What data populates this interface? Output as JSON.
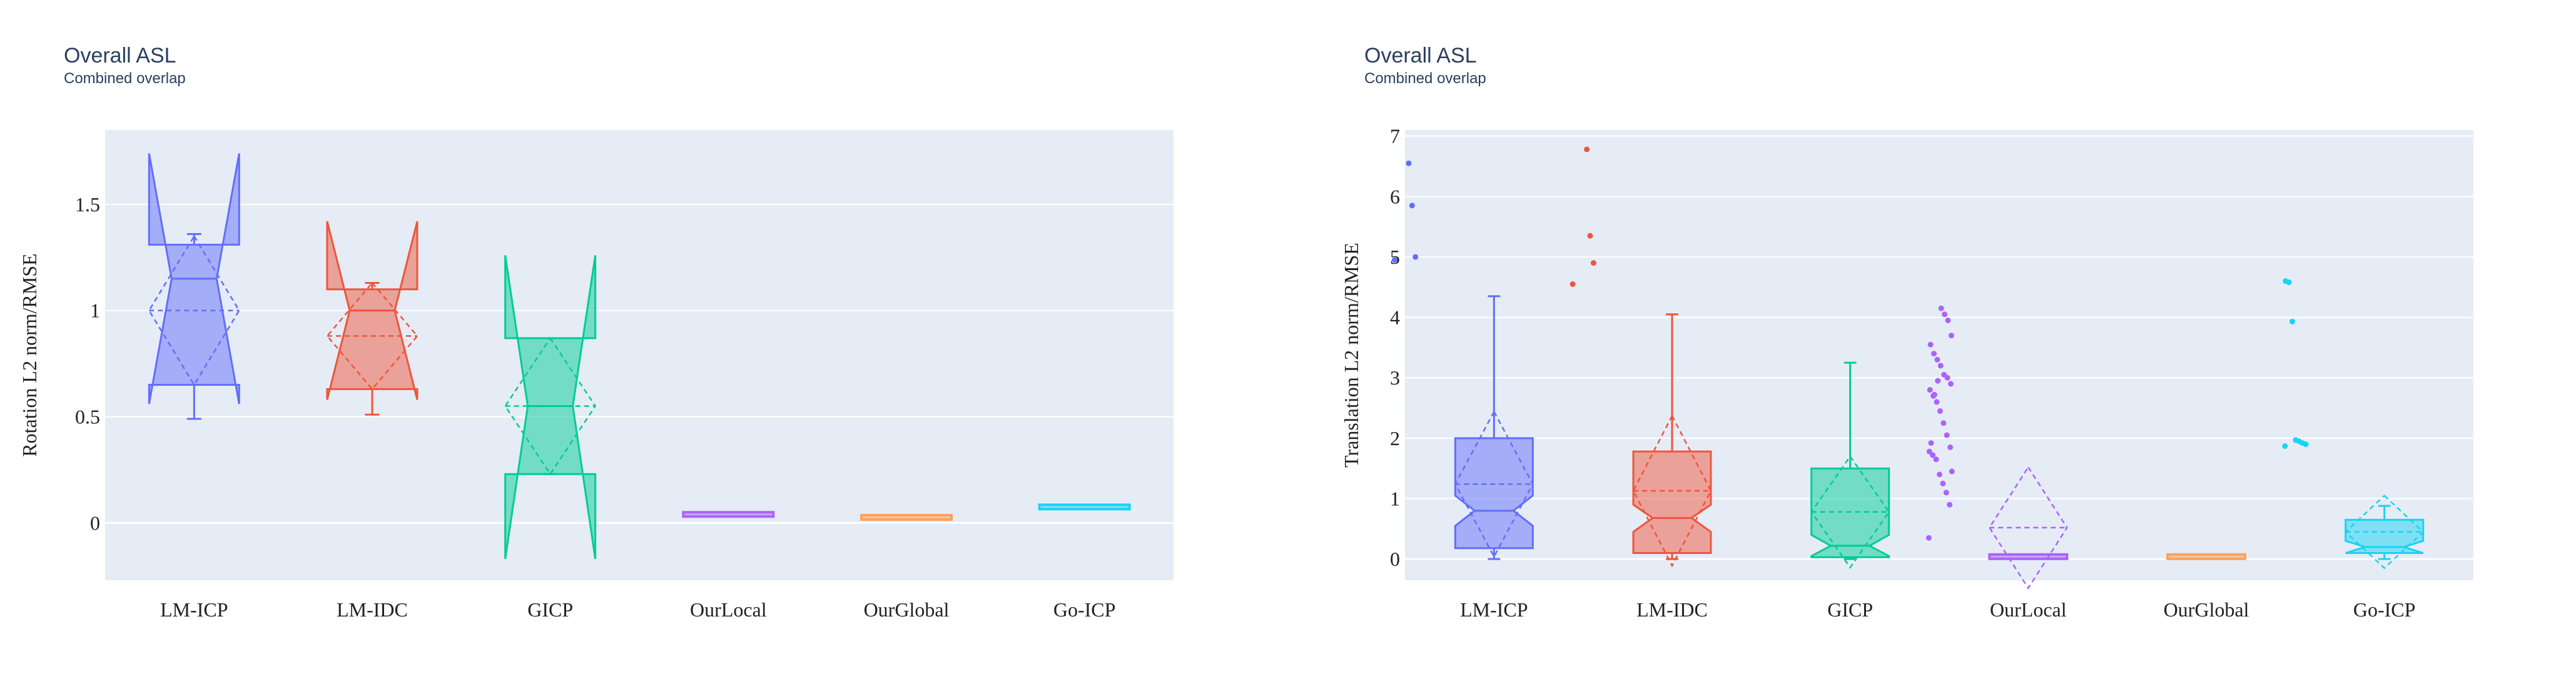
{
  "colors": {
    "LM-ICP": "#636efa",
    "LM-IDC": "#ef553b",
    "GICP": "#00cc96",
    "OurLocal": "#ab63fa",
    "OurGlobal": "#ffa15a",
    "Go-ICP": "#19d3f3",
    "plot_bg": "#e5ecf6",
    "grid": "#ffffff"
  },
  "chart_data": [
    {
      "type": "box",
      "title": "Overall ASL",
      "subtitle": "Combined overlap",
      "ylabel": "Rotation L2 norm/RMSE",
      "xlabel": "",
      "ylim": [
        -0.27,
        1.85
      ],
      "yticks": [
        0,
        0.5,
        1,
        1.5
      ],
      "ytick_labels": [
        "0",
        "0.5",
        "1",
        "1.5"
      ],
      "grid": true,
      "notched": true,
      "show_mean_sd": true,
      "categories": [
        "LM-ICP",
        "LM-IDC",
        "GICP",
        "OurLocal",
        "OurGlobal",
        "Go-ICP"
      ],
      "boxes": [
        {
          "name": "LM-ICP",
          "q1": 0.65,
          "median": 1.15,
          "q3": 1.31,
          "lower_fence": 0.49,
          "upper_fence": 1.36,
          "notch_low": 0.56,
          "notch_high": 1.74,
          "mean": 1.0,
          "sd": 0.35,
          "outliers": []
        },
        {
          "name": "LM-IDC",
          "q1": 0.63,
          "median": 1.0,
          "q3": 1.1,
          "lower_fence": 0.51,
          "upper_fence": 1.13,
          "notch_low": 0.58,
          "notch_high": 1.42,
          "mean": 0.88,
          "sd": 0.25,
          "outliers": []
        },
        {
          "name": "GICP",
          "q1": 0.23,
          "median": 0.55,
          "q3": 0.87,
          "lower_fence": 0.23,
          "upper_fence": 0.87,
          "notch_low": -0.17,
          "notch_high": 1.26,
          "mean": 0.55,
          "sd": 0.32,
          "outliers": []
        },
        {
          "name": "OurLocal",
          "q1": 0.033,
          "median": 0.04,
          "q3": 0.047,
          "lower_fence": 0.033,
          "upper_fence": 0.047,
          "mean": 0.04,
          "sd": 0.006,
          "outliers": []
        },
        {
          "name": "OurGlobal",
          "q1": 0.025,
          "median": 0.026,
          "q3": 0.027,
          "lower_fence": 0.025,
          "upper_fence": 0.027,
          "mean": 0.026,
          "sd": 0.001,
          "outliers": []
        },
        {
          "name": "Go-ICP",
          "q1": 0.074,
          "median": 0.075,
          "q3": 0.076,
          "lower_fence": 0.074,
          "upper_fence": 0.076,
          "mean": 0.075,
          "sd": 0.001,
          "outliers": []
        }
      ]
    },
    {
      "type": "box",
      "title": "Overall ASL",
      "subtitle": "Combined overlap",
      "ylabel": "Translation L2 norm/RMSE",
      "xlabel": "",
      "ylim": [
        -0.35,
        7.1
      ],
      "yticks": [
        0,
        1,
        2,
        3,
        4,
        5,
        6,
        7
      ],
      "ytick_labels": [
        "0",
        "1",
        "2",
        "3",
        "4",
        "5",
        "6",
        "7"
      ],
      "grid": true,
      "notched": true,
      "show_mean_sd": true,
      "categories": [
        "LM-ICP",
        "LM-IDC",
        "GICP",
        "OurLocal",
        "OurGlobal",
        "Go-ICP"
      ],
      "boxes": [
        {
          "name": "LM-ICP",
          "q1": 0.18,
          "median": 0.8,
          "q3": 2.0,
          "lower_fence": 0.0,
          "upper_fence": 4.35,
          "notch_low": 0.55,
          "notch_high": 1.05,
          "mean": 1.24,
          "sd": 1.2,
          "outliers": [
            4.95,
            5.0,
            5.85,
            6.55
          ]
        },
        {
          "name": "LM-IDC",
          "q1": 0.1,
          "median": 0.68,
          "q3": 1.78,
          "lower_fence": 0.0,
          "upper_fence": 4.05,
          "notch_low": 0.45,
          "notch_high": 0.9,
          "mean": 1.13,
          "sd": 1.24,
          "outliers": [
            4.55,
            4.9,
            5.35,
            6.78
          ]
        },
        {
          "name": "GICP",
          "q1": 0.03,
          "median": 0.22,
          "q3": 1.5,
          "lower_fence": 0.0,
          "upper_fence": 3.25,
          "notch_low": 0.05,
          "notch_high": 0.4,
          "mean": 0.78,
          "sd": 0.92,
          "outliers": []
        },
        {
          "name": "OurLocal",
          "q1": 0.02,
          "median": 0.04,
          "q3": 0.07,
          "lower_fence": 0.0,
          "upper_fence": 0.1,
          "mean": 0.52,
          "sd": 1.0,
          "outliers": [
            0.35,
            0.9,
            1.1,
            1.25,
            1.4,
            1.65,
            1.72,
            1.78,
            1.85,
            2.05,
            2.25,
            2.45,
            2.6,
            2.7,
            2.8,
            2.9,
            3.0,
            3.05,
            3.2,
            3.3,
            3.4,
            3.55,
            3.7,
            3.95,
            4.05,
            4.15,
            2.95,
            2.72,
            1.92,
            1.45
          ]
        },
        {
          "name": "OurGlobal",
          "q1": 0.03,
          "median": 0.04,
          "q3": 0.05,
          "lower_fence": 0.03,
          "upper_fence": 0.05,
          "mean": 0.04,
          "sd": 0.005,
          "outliers": []
        },
        {
          "name": "Go-ICP",
          "q1": 0.1,
          "median": 0.2,
          "q3": 0.65,
          "lower_fence": 0.0,
          "upper_fence": 0.88,
          "notch_low": 0.1,
          "notch_high": 0.3,
          "mean": 0.45,
          "sd": 0.6,
          "outliers": [
            1.87,
            1.9,
            1.92,
            1.95,
            1.97,
            3.93,
            4.58,
            4.6
          ]
        }
      ]
    }
  ]
}
